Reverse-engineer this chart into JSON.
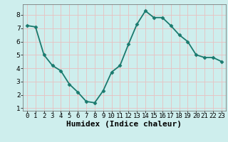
{
  "x": [
    0,
    1,
    2,
    3,
    4,
    5,
    6,
    7,
    8,
    9,
    10,
    11,
    12,
    13,
    14,
    15,
    16,
    17,
    18,
    19,
    20,
    21,
    22,
    23
  ],
  "y": [
    7.2,
    7.1,
    5.0,
    4.2,
    3.8,
    2.8,
    2.2,
    1.5,
    1.4,
    2.3,
    3.7,
    4.2,
    5.8,
    7.3,
    8.3,
    7.8,
    7.8,
    7.2,
    6.5,
    6.0,
    5.0,
    4.8,
    4.8,
    4.5
  ],
  "line_color": "#1a7a6e",
  "marker": "D",
  "marker_size": 2.5,
  "bg_color": "#ceeeed",
  "grid_color": "#e8c0c0",
  "xlabel": "Humidex (Indice chaleur)",
  "xlim": [
    -0.5,
    23.5
  ],
  "ylim": [
    0.8,
    8.8
  ],
  "yticks": [
    1,
    2,
    3,
    4,
    5,
    6,
    7,
    8
  ],
  "xticks": [
    0,
    1,
    2,
    3,
    4,
    5,
    6,
    7,
    8,
    9,
    10,
    11,
    12,
    13,
    14,
    15,
    16,
    17,
    18,
    19,
    20,
    21,
    22,
    23
  ],
  "tick_labelsize": 6.5,
  "xlabel_fontsize": 8,
  "linewidth": 1.3,
  "spine_color": "#666666"
}
